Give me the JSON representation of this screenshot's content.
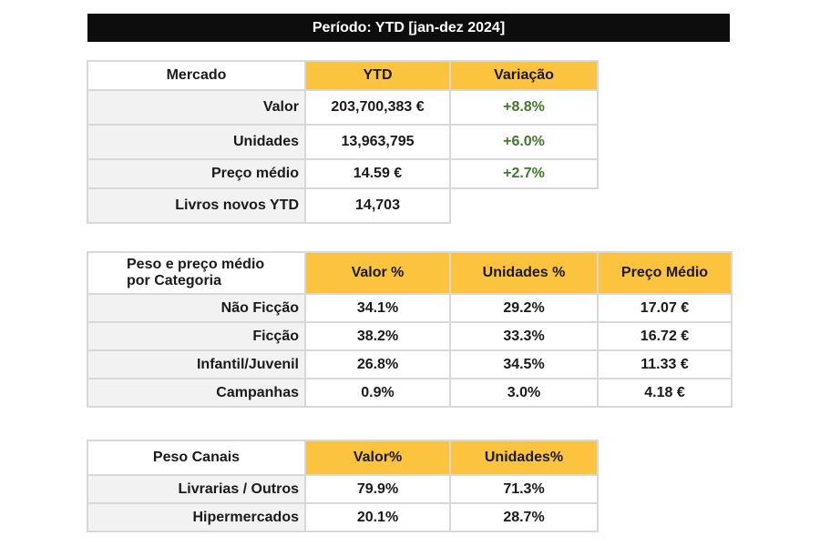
{
  "banner": {
    "periodo": "Período: YTD [jan-dez 2024]"
  },
  "mercado": {
    "header": {
      "label": "Mercado",
      "ytd": "YTD",
      "variacao": "Variação"
    },
    "rows": [
      {
        "label": "Valor",
        "ytd": "203,700,383 €",
        "variacao": "+8.8%"
      },
      {
        "label": "Unidades",
        "ytd": "13,963,795",
        "variacao": "+6.0%"
      },
      {
        "label": "Preço médio",
        "ytd": "14.59 €",
        "variacao": "+2.7%"
      },
      {
        "label": "Livros novos YTD",
        "ytd": "14,703"
      }
    ]
  },
  "categoria": {
    "header": {
      "label_line1": "Peso e preço médio",
      "label_line2": "por Categoria",
      "valor": "Valor %",
      "unidades": "Unidades %",
      "preco": "Preço Médio"
    },
    "rows": [
      {
        "label": "Não Ficção",
        "valor": "34.1%",
        "unidades": "29.2%",
        "preco": "17.07 €"
      },
      {
        "label": "Ficção",
        "valor": "38.2%",
        "unidades": "33.3%",
        "preco": "16.72 €"
      },
      {
        "label": "Infantil/Juvenil",
        "valor": "26.8%",
        "unidades": "34.5%",
        "preco": "11.33 €"
      },
      {
        "label": "Campanhas",
        "valor": "0.9%",
        "unidades": "3.0%",
        "preco": "4.18 €"
      }
    ]
  },
  "canais": {
    "header": {
      "label": "Peso Canais",
      "valor": "Valor%",
      "unidades": "Unidades%"
    },
    "rows": [
      {
        "label": "Livrarias / Outros",
        "valor": "79.9%",
        "unidades": "71.3%"
      },
      {
        "label": "Hipermercados",
        "valor": "20.1%",
        "unidades": "28.7%"
      }
    ]
  },
  "colors": {
    "header_fill": "#fcc33f",
    "positive_text": "#3f7a2c",
    "banner_fill": "#0d0d0d",
    "label_fill": "#f2f2f2"
  }
}
